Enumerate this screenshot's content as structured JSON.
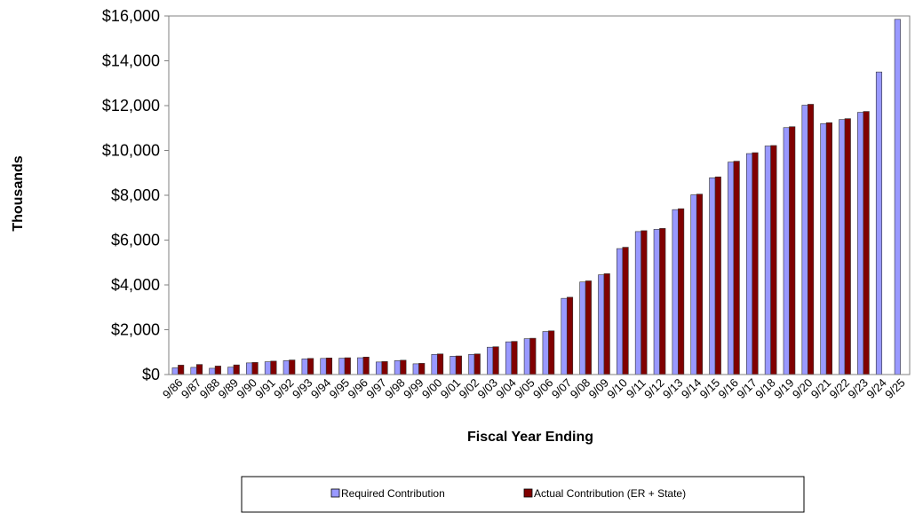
{
  "chart_data": {
    "type": "bar",
    "title": "",
    "xlabel": "Fiscal Year Ending",
    "ylabel": "Thousands",
    "ylim": [
      0,
      16000
    ],
    "yticks": [
      0,
      2000,
      4000,
      6000,
      8000,
      10000,
      12000,
      14000,
      16000
    ],
    "ytick_labels": [
      "$0",
      "$2,000",
      "$4,000",
      "$6,000",
      "$8,000",
      "$10,000",
      "$12,000",
      "$14,000",
      "$16,000"
    ],
    "grid": false,
    "legend_position": "bottom",
    "categories": [
      "9/86",
      "9/87",
      "9/88",
      "9/89",
      "9/90",
      "9/91",
      "9/92",
      "9/93",
      "9/94",
      "9/95",
      "9/96",
      "9/97",
      "9/98",
      "9/99",
      "9/00",
      "9/01",
      "9/02",
      "9/03",
      "9/04",
      "9/05",
      "9/06",
      "9/07",
      "9/08",
      "9/09",
      "9/10",
      "9/11",
      "9/12",
      "9/13",
      "9/14",
      "9/15",
      "9/16",
      "9/17",
      "9/18",
      "9/19",
      "9/20",
      "9/21",
      "9/22",
      "9/23",
      "9/24",
      "9/25"
    ],
    "series": [
      {
        "name": "Required Contribution",
        "color": "#9999ff",
        "values": [
          300,
          320,
          280,
          330,
          520,
          570,
          620,
          700,
          720,
          730,
          750,
          560,
          620,
          480,
          900,
          820,
          900,
          1220,
          1460,
          1600,
          1920,
          3400,
          4130,
          4450,
          5620,
          6380,
          6480,
          7360,
          8020,
          8780,
          9480,
          9860,
          10200,
          11020,
          12020,
          11200,
          11380,
          11700,
          13500,
          15850
        ]
      },
      {
        "name": "Actual Contribution (ER + State)",
        "color": "#800000",
        "values": [
          420,
          450,
          380,
          430,
          540,
          600,
          650,
          720,
          740,
          750,
          780,
          580,
          640,
          500,
          920,
          830,
          920,
          1240,
          1480,
          1620,
          1950,
          3450,
          4180,
          4500,
          5680,
          6420,
          6520,
          7400,
          8050,
          8820,
          9520,
          9900,
          10220,
          11060,
          12060,
          11240,
          11420,
          11740,
          null,
          null
        ]
      }
    ]
  }
}
